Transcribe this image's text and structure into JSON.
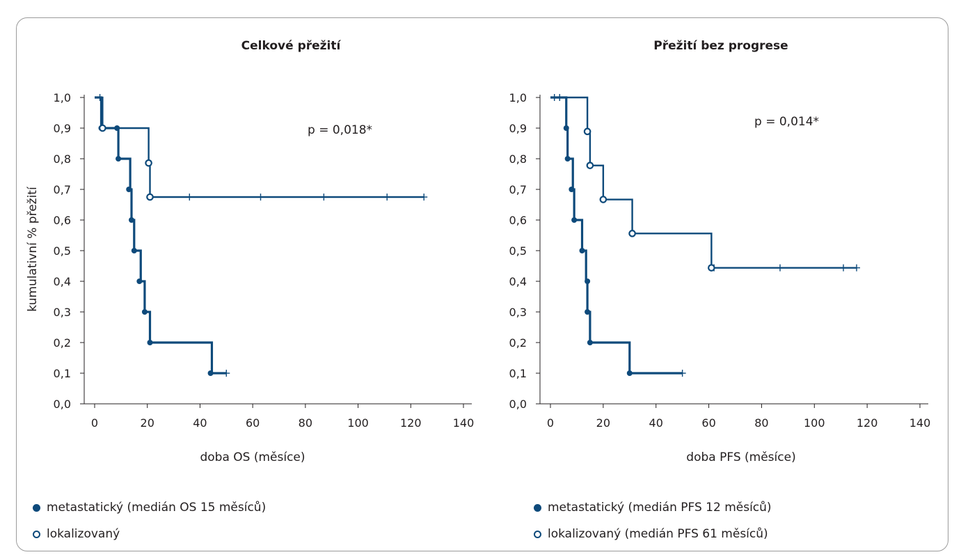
{
  "colors": {
    "line": "#0e4a7b",
    "axis": "#231f20",
    "frame": "#9b9b9b"
  },
  "chart_data": [
    {
      "type": "line",
      "subtype": "kaplan-meier",
      "title": "Celkové přežití",
      "xlabel": "doba OS (měsíce)",
      "ylabel": "kumulativní % přežití",
      "xlim": [
        0,
        140
      ],
      "ylim": [
        0,
        1.0
      ],
      "xticks": [
        "0",
        "20",
        "40",
        "60",
        "80",
        "100",
        "120",
        "140"
      ],
      "yticks": [
        "0,0",
        "0,1",
        "0,2",
        "0,3",
        "0,4",
        "0,5",
        "0,6",
        "0,7",
        "0,8",
        "0,9",
        "1,0"
      ],
      "annotation": "p = 0,018*",
      "series": [
        {
          "name": "metastatický (medián OS 15 měsíců)",
          "marker": "filled",
          "steps": [
            [
              0,
              1.0
            ],
            [
              2.5,
              0.9
            ],
            [
              9,
              0.8
            ],
            [
              13.5,
              0.7
            ],
            [
              14,
              0.6
            ],
            [
              15,
              0.5
            ],
            [
              17.5,
              0.4
            ],
            [
              19,
              0.3
            ],
            [
              21,
              0.2
            ],
            [
              44.5,
              0.1
            ],
            [
              50,
              0.1
            ]
          ],
          "events": [
            [
              2.5,
              0.9
            ],
            [
              8.5,
              0.9
            ],
            [
              9,
              0.8
            ],
            [
              13,
              0.7
            ],
            [
              14,
              0.6
            ],
            [
              15,
              0.5
            ],
            [
              17,
              0.4
            ],
            [
              19,
              0.3
            ],
            [
              21,
              0.2
            ],
            [
              44,
              0.1
            ]
          ],
          "censored": [
            [
              2,
              1.0
            ],
            [
              50,
              0.1
            ]
          ]
        },
        {
          "name": "lokalizovaný",
          "marker": "open",
          "steps": [
            [
              0,
              1.0
            ],
            [
              3,
              0.9
            ],
            [
              20.5,
              0.786
            ],
            [
              21,
              0.675
            ],
            [
              125,
              0.675
            ]
          ],
          "events": [
            [
              3,
              0.9
            ],
            [
              20.5,
              0.786
            ],
            [
              21,
              0.675
            ]
          ],
          "censored": [
            [
              36,
              0.675
            ],
            [
              63,
              0.675
            ],
            [
              87,
              0.675
            ],
            [
              111,
              0.675
            ],
            [
              125,
              0.675
            ]
          ]
        }
      ]
    },
    {
      "type": "line",
      "subtype": "kaplan-meier",
      "title": "Přežití bez progrese",
      "xlabel": "doba PFS (měsíce)",
      "ylabel": "",
      "xlim": [
        0,
        140
      ],
      "ylim": [
        0,
        1.0
      ],
      "xticks": [
        "0",
        "20",
        "40",
        "60",
        "80",
        "100",
        "120",
        "140"
      ],
      "yticks": [
        "0,0",
        "0,1",
        "0,2",
        "0,3",
        "0,4",
        "0,5",
        "0,6",
        "0,7",
        "0,8",
        "0,9",
        "1,0"
      ],
      "annotation": "p = 0,014*",
      "series": [
        {
          "name": "metastatický (medián PFS 12 měsíců)",
          "marker": "filled",
          "steps": [
            [
              0,
              1.0
            ],
            [
              6,
              0.9
            ],
            [
              6.5,
              0.8
            ],
            [
              8.5,
              0.7
            ],
            [
              9,
              0.6
            ],
            [
              12,
              0.5
            ],
            [
              13.5,
              0.4
            ],
            [
              14,
              0.3
            ],
            [
              15,
              0.2
            ],
            [
              30,
              0.1
            ],
            [
              50,
              0.1
            ]
          ],
          "events": [
            [
              6,
              0.9
            ],
            [
              6.5,
              0.8
            ],
            [
              8,
              0.7
            ],
            [
              9,
              0.6
            ],
            [
              12,
              0.5
            ],
            [
              14,
              0.4
            ],
            [
              14,
              0.3
            ],
            [
              15,
              0.2
            ],
            [
              30,
              0.1
            ]
          ],
          "censored": [
            [
              50,
              0.1
            ]
          ]
        },
        {
          "name": "lokalizovaný (medián PFS 61 měsíců)",
          "marker": "open",
          "steps": [
            [
              0,
              1.0
            ],
            [
              14,
              0.889
            ],
            [
              15,
              0.778
            ],
            [
              20,
              0.667
            ],
            [
              31,
              0.556
            ],
            [
              61,
              0.444
            ],
            [
              116,
              0.444
            ]
          ],
          "events": [
            [
              14,
              0.889
            ],
            [
              15,
              0.778
            ],
            [
              20,
              0.667
            ],
            [
              31,
              0.556
            ],
            [
              61,
              0.444
            ]
          ],
          "censored": [
            [
              1.5,
              1.0
            ],
            [
              3.5,
              1.0
            ],
            [
              62,
              0.444
            ],
            [
              87,
              0.444
            ],
            [
              111,
              0.444
            ],
            [
              116,
              0.444
            ]
          ]
        }
      ]
    }
  ],
  "legend_left": [
    {
      "marker": "filled",
      "label": "metastatický (medián OS 15 měsíců)"
    },
    {
      "marker": "open",
      "label": "lokalizovaný"
    }
  ],
  "legend_right": [
    {
      "marker": "filled",
      "label": "metastatický (medián PFS 12 měsíců)"
    },
    {
      "marker": "open",
      "label": "lokalizovaný (medián PFS 61 měsíců)"
    }
  ]
}
